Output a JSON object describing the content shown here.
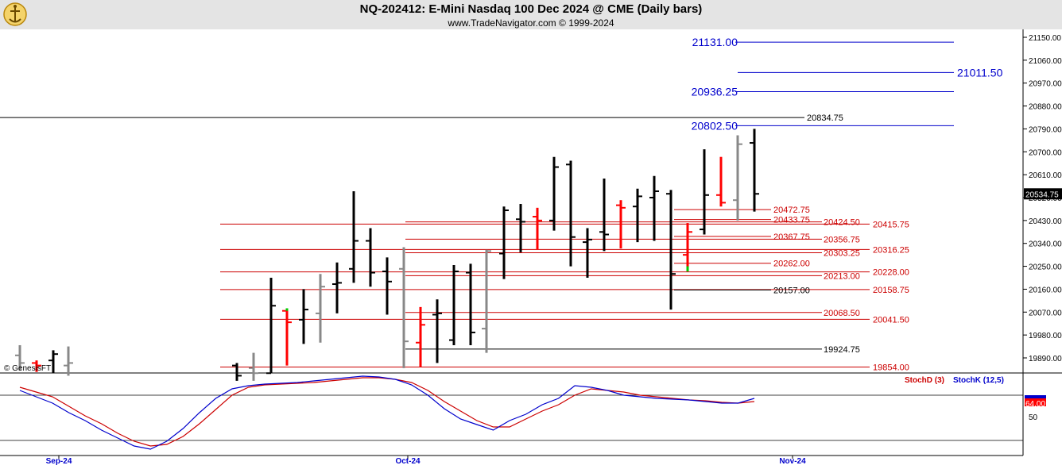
{
  "header": {
    "title": "NQ-202412:  E-Mini Nasdaq 100 Dec 2024 @ CME  (Daily bars)",
    "subtitle": "www.TradeNavigator.com © 1999-2024"
  },
  "copyright_label": "© GenesisFT",
  "colors": {
    "bull": "#000000",
    "bear": "#ff0000",
    "gray": "#888888",
    "green": "#00cc00",
    "blue": "#0000cc",
    "red_line": "#cc0000",
    "stochD": "#cc0000",
    "stochK": "#0000cc"
  },
  "chart_data": {
    "type": "ohlc",
    "price_axis": {
      "ticks": [
        21150,
        21060,
        20970,
        20880,
        20790,
        20700,
        20610,
        20520,
        20430,
        20340,
        20250,
        20160,
        20070,
        19980,
        19890
      ],
      "tick_labels": [
        "21150.00",
        "21060.00",
        "20970.00",
        "20880.00",
        "20790.00",
        "20700.00",
        "20610.00",
        "20520.00",
        "20430.00",
        "20340.00",
        "20250.00",
        "20160.00",
        "20070.00",
        "19980.00",
        "19890.00"
      ],
      "last_price_label": "20534.75",
      "last_price": 20534.75
    },
    "date_labels": [
      "Sep-24",
      "Oct-24",
      "Nov-24"
    ],
    "bars": [
      {
        "d": "Aug-30",
        "o": 19900,
        "h": 19940,
        "l": 19840,
        "c": 19870,
        "col": "gray"
      },
      {
        "d": "Sep-03",
        "o": 19870,
        "h": 19880,
        "l": 19835,
        "c": 19860,
        "col": "red"
      },
      {
        "d": "Sep-04",
        "o": 19880,
        "h": 19920,
        "l": 19830,
        "c": 19905,
        "col": "black"
      },
      {
        "d": "Sep-05",
        "o": 19860,
        "h": 19935,
        "l": 19820,
        "c": 19870,
        "col": "gray"
      },
      {
        "d": "Sep-17",
        "o": 19860,
        "h": 19870,
        "l": 19800,
        "c": 19820,
        "col": "black"
      },
      {
        "d": "Sep-18",
        "o": 19850,
        "h": 19910,
        "l": 19800,
        "c": 19830,
        "col": "gray"
      },
      {
        "d": "Sep-19",
        "o": 19830,
        "h": 20205,
        "l": 19830,
        "c": 20095,
        "col": "black"
      },
      {
        "d": "Sep-20",
        "o": 20075,
        "h": 20085,
        "l": 19860,
        "c": 20030,
        "col": "red"
      },
      {
        "d": "Sep-23",
        "o": 20040,
        "h": 20160,
        "l": 19945,
        "c": 20080,
        "col": "black"
      },
      {
        "d": "Sep-24",
        "o": 20065,
        "h": 20220,
        "l": 19950,
        "c": 20170,
        "col": "gray"
      },
      {
        "d": "Sep-25",
        "o": 20180,
        "h": 20265,
        "l": 20065,
        "c": 20185,
        "col": "black"
      },
      {
        "d": "Sep-26",
        "o": 20240,
        "h": 20545,
        "l": 20185,
        "c": 20350,
        "col": "black"
      },
      {
        "d": "Sep-27",
        "o": 20350,
        "h": 20400,
        "l": 20170,
        "c": 20225,
        "col": "black"
      },
      {
        "d": "Sep-30",
        "o": 20230,
        "h": 20285,
        "l": 20060,
        "c": 20190,
        "col": "black"
      },
      {
        "d": "Oct-01",
        "o": 20240,
        "h": 20325,
        "l": 19850,
        "c": 19955,
        "col": "gray"
      },
      {
        "d": "Oct-02",
        "o": 19950,
        "h": 20090,
        "l": 19855,
        "c": 20020,
        "col": "red"
      },
      {
        "d": "Oct-03",
        "o": 20060,
        "h": 20120,
        "l": 19870,
        "c": 20065,
        "col": "black"
      },
      {
        "d": "Oct-04",
        "o": 19960,
        "h": 20255,
        "l": 19940,
        "c": 20230,
        "col": "black"
      },
      {
        "d": "Oct-07",
        "o": 20225,
        "h": 20260,
        "l": 19940,
        "c": 19990,
        "col": "black"
      },
      {
        "d": "Oct-08",
        "o": 20005,
        "h": 20315,
        "l": 19910,
        "c": 20310,
        "col": "gray"
      },
      {
        "d": "Oct-09",
        "o": 20300,
        "h": 20485,
        "l": 20200,
        "c": 20470,
        "col": "black"
      },
      {
        "d": "Oct-10",
        "o": 20435,
        "h": 20495,
        "l": 20305,
        "c": 20425,
        "col": "black"
      },
      {
        "d": "Oct-11",
        "o": 20445,
        "h": 20480,
        "l": 20315,
        "c": 20430,
        "col": "red"
      },
      {
        "d": "Oct-14",
        "o": 20430,
        "h": 20680,
        "l": 20390,
        "c": 20640,
        "col": "black"
      },
      {
        "d": "Oct-15",
        "o": 20650,
        "h": 20665,
        "l": 20250,
        "c": 20365,
        "col": "black"
      },
      {
        "d": "Oct-16",
        "o": 20345,
        "h": 20400,
        "l": 20205,
        "c": 20355,
        "col": "black"
      },
      {
        "d": "Oct-17",
        "o": 20385,
        "h": 20595,
        "l": 20310,
        "c": 20375,
        "col": "black"
      },
      {
        "d": "Oct-18",
        "o": 20490,
        "h": 20510,
        "l": 20320,
        "c": 20480,
        "col": "red"
      },
      {
        "d": "Oct-21",
        "o": 20485,
        "h": 20555,
        "l": 20345,
        "c": 20525,
        "col": "black"
      },
      {
        "d": "Oct-22",
        "o": 20520,
        "h": 20605,
        "l": 20350,
        "c": 20545,
        "col": "black"
      },
      {
        "d": "Oct-23",
        "o": 20535,
        "h": 20550,
        "l": 20080,
        "c": 20220,
        "col": "black"
      },
      {
        "d": "Oct-24",
        "o": 20295,
        "h": 20420,
        "l": 20230,
        "c": 20385,
        "col": "red"
      },
      {
        "d": "Oct-25",
        "o": 20395,
        "h": 20710,
        "l": 20375,
        "c": 20530,
        "col": "black"
      },
      {
        "d": "Oct-28",
        "o": 20530,
        "h": 20680,
        "l": 20485,
        "c": 20500,
        "col": "red"
      },
      {
        "d": "Oct-29",
        "o": 20510,
        "h": 20765,
        "l": 20430,
        "c": 20730,
        "col": "gray"
      },
      {
        "d": "Oct-30",
        "o": 20735,
        "h": 20790,
        "l": 20465,
        "c": 20534.75,
        "col": "black"
      }
    ],
    "levels_blue": [
      "21131.00",
      "21011.50",
      "20936.25",
      "20802.50"
    ],
    "level_black_top": "20834.75",
    "levels_red": [
      "20472.75",
      "20433.75",
      "20424.50",
      "20415.75",
      "20367.75",
      "20356.75",
      "20303.25",
      "20316.25",
      "20262.00",
      "20213.00",
      "20228.00",
      "20158.75",
      "20068.50",
      "20041.50",
      "19854.00"
    ],
    "levels_black": [
      "20157.00",
      "19924.75"
    ],
    "oscillator": {
      "labels": [
        "StochD (3)",
        "StochK (12,5)"
      ],
      "axis_label": "50",
      "value_label": "64.00",
      "stochK": [
        78,
        70,
        62,
        50,
        40,
        28,
        18,
        8,
        4,
        14,
        30,
        50,
        68,
        80,
        84,
        86,
        87,
        88,
        90,
        92,
        94,
        96,
        95,
        92,
        85,
        72,
        55,
        42,
        35,
        28,
        40,
        48,
        60,
        68,
        84,
        82,
        78,
        72,
        70,
        68,
        67,
        66,
        64,
        62,
        62,
        68
      ],
      "stochD": [
        82,
        76,
        70,
        58,
        46,
        36,
        24,
        14,
        8,
        10,
        20,
        36,
        54,
        72,
        82,
        85,
        86,
        87,
        88,
        90,
        92,
        94,
        94,
        92,
        88,
        78,
        64,
        52,
        40,
        32,
        32,
        42,
        52,
        60,
        72,
        80,
        78,
        76,
        72,
        70,
        68,
        66,
        65,
        63,
        62,
        64
      ]
    }
  }
}
